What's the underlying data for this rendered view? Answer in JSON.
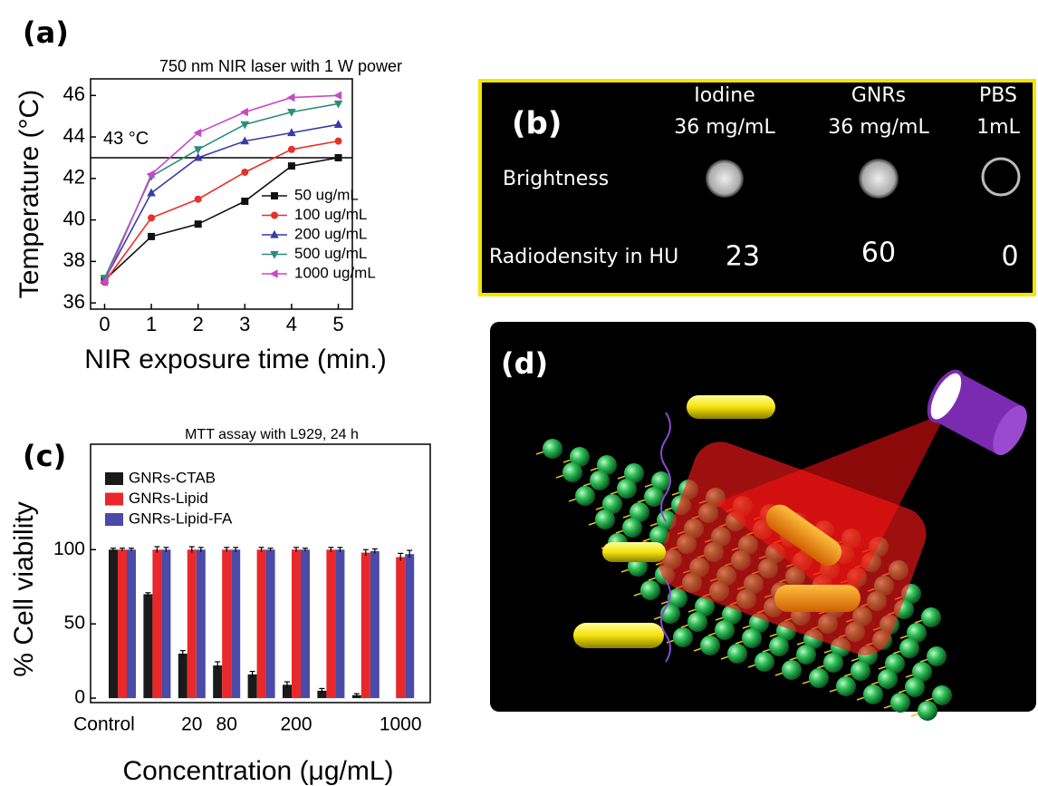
{
  "chart_data": [
    {
      "type": "line",
      "panel_label": "(a)",
      "annotation": "750 nm NIR laser with 1 W power",
      "xlabel": "NIR exposure time (min.)",
      "ylabel": "Temperature (°C)",
      "x": [
        0,
        1,
        2,
        3,
        4,
        5
      ],
      "xlim": [
        -0.3,
        5.3
      ],
      "xticks": [
        0,
        1,
        2,
        3,
        4,
        5
      ],
      "ylim": [
        35.7,
        46.8
      ],
      "yticks": [
        36,
        38,
        40,
        42,
        44,
        46
      ],
      "reference_line": {
        "value": 43,
        "label": "43 °C"
      },
      "legend": "lower right",
      "series": [
        {
          "name": "50 ug/mL",
          "color": "#111111",
          "marker": "square",
          "values": [
            37.1,
            39.2,
            39.8,
            40.9,
            42.6,
            43.0
          ]
        },
        {
          "name": "100 ug/mL",
          "color": "#e8302c",
          "marker": "circle",
          "values": [
            37.0,
            40.1,
            41.0,
            42.3,
            43.4,
            43.8
          ]
        },
        {
          "name": "200 ug/mL",
          "color": "#3a3aa8",
          "marker": "triangle-up",
          "values": [
            37.1,
            41.3,
            43.0,
            43.8,
            44.2,
            44.6
          ]
        },
        {
          "name": "500 ug/mL",
          "color": "#2e8c7c",
          "marker": "triangle-down",
          "values": [
            37.2,
            42.1,
            43.4,
            44.6,
            45.2,
            45.6
          ]
        },
        {
          "name": "1000 ug/mL",
          "color": "#c848c8",
          "marker": "triangle-left",
          "values": [
            37.0,
            42.2,
            44.2,
            45.2,
            45.9,
            46.0
          ]
        }
      ]
    },
    {
      "type": "bar",
      "panel_label": "(c)",
      "annotation": "MTT assay with L929, 24 h",
      "xlabel": "Concentration (μg/mL)",
      "ylabel": "% Cell viability",
      "categories": [
        "Control",
        null,
        "20",
        "80",
        null,
        "200",
        null,
        null,
        "1000"
      ],
      "ylim": [
        -3,
        171
      ],
      "yticks": [
        0,
        50,
        100
      ],
      "legend": "upper left",
      "series": [
        {
          "name": "GNRs-CTAB",
          "color": "#1a1a1a",
          "values": [
            100,
            70,
            30,
            22,
            16,
            9,
            5,
            2,
            null
          ],
          "errors": [
            1,
            1,
            2,
            2.5,
            2,
            2,
            1.5,
            1,
            null
          ]
        },
        {
          "name": "GNRs-Lipid",
          "color": "#e8282a",
          "values": [
            100,
            100,
            100,
            100,
            100,
            100,
            100,
            98,
            95
          ],
          "errors": [
            1,
            2,
            2,
            1.5,
            1.5,
            1.5,
            1.5,
            2,
            2.5
          ]
        },
        {
          "name": "GNRs-Lipid-FA",
          "color": "#4a4aa8",
          "values": [
            100,
            100,
            100,
            100,
            100,
            100,
            100,
            99,
            97
          ],
          "errors": [
            1,
            1.5,
            1.5,
            1.5,
            1,
            1,
            1.5,
            1.5,
            2.5
          ]
        }
      ]
    }
  ],
  "ct_panel": {
    "label": "(b)",
    "columns": [
      {
        "name": "Iodine",
        "conc": "36 mg/mL",
        "hu": 23
      },
      {
        "name": "GNRs",
        "conc": "36 mg/mL",
        "hu": 60
      },
      {
        "name": "PBS",
        "conc": "1mL",
        "hu": 0
      }
    ],
    "row_labels": [
      "Brightness",
      "Radiodensity in HU"
    ]
  },
  "diagram_panel": {
    "label": "(d)"
  }
}
